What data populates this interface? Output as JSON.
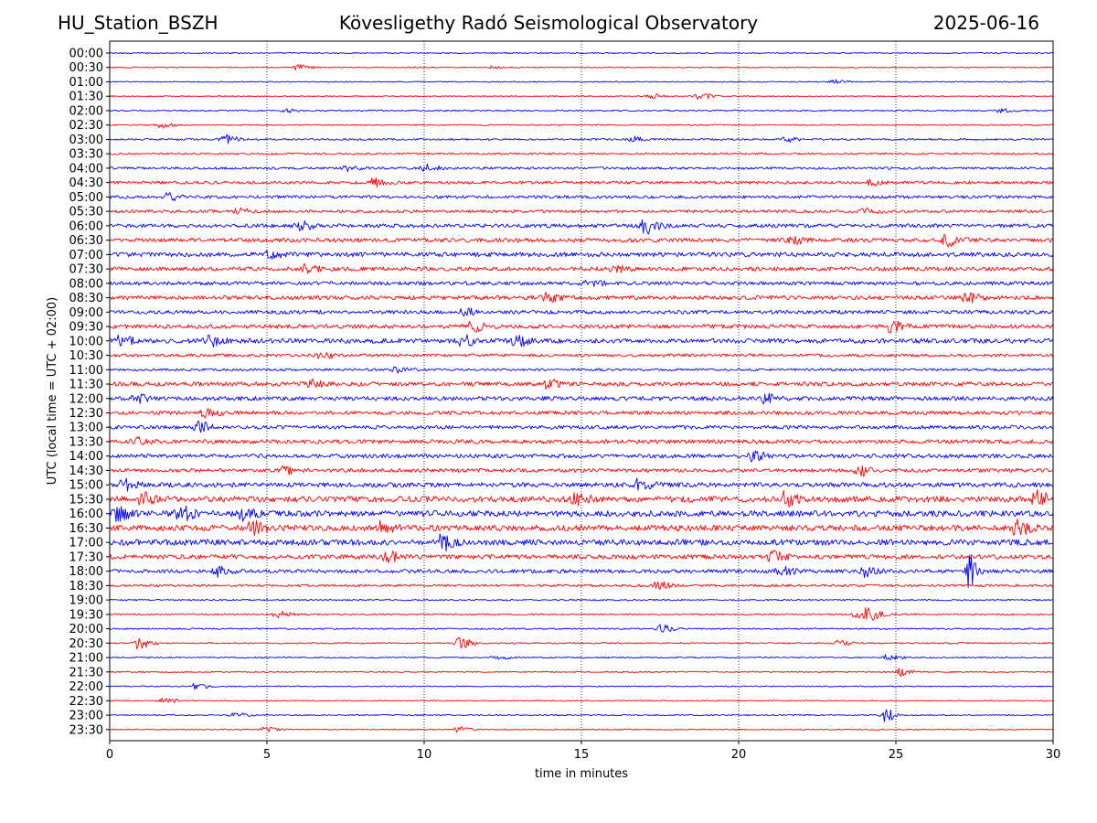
{
  "header": {
    "station": "HU_Station_BSZH",
    "title": "Kövesligethy Radó Seismological Observatory",
    "date": "2025-06-16"
  },
  "chart_data": {
    "type": "line",
    "subtype": "helicorder",
    "xlabel": "time in minutes",
    "ylabel": "UTC (local time = UTC + 02:00)",
    "xlim": [
      0,
      30
    ],
    "xticks": [
      0,
      5,
      10,
      15,
      20,
      25,
      30
    ],
    "grid": "vertical dotted at x ticks",
    "colors": [
      "#0000ff",
      "#ff0000"
    ],
    "rows": [
      "00:00",
      "00:30",
      "01:00",
      "01:30",
      "02:00",
      "02:30",
      "03:00",
      "03:30",
      "04:00",
      "04:30",
      "05:00",
      "05:30",
      "06:00",
      "06:30",
      "07:00",
      "07:30",
      "08:00",
      "08:30",
      "09:00",
      "09:30",
      "10:00",
      "10:30",
      "11:00",
      "11:30",
      "12:00",
      "12:30",
      "13:00",
      "13:30",
      "14:00",
      "14:30",
      "15:00",
      "15:30",
      "16:00",
      "16:30",
      "17:00",
      "17:30",
      "18:00",
      "18:30",
      "19:00",
      "19:30",
      "20:00",
      "20:30",
      "21:00",
      "21:30",
      "22:00",
      "22:30",
      "23:00",
      "23:30"
    ],
    "noise_level": [
      0.6,
      0.6,
      0.6,
      0.6,
      0.8,
      0.7,
      1.0,
      1.0,
      1.3,
      1.6,
      1.6,
      1.6,
      2.0,
      2.2,
      2.4,
      2.2,
      2.0,
      2.2,
      2.0,
      2.2,
      2.5,
      1.6,
      1.3,
      2.2,
      2.2,
      2.0,
      2.0,
      2.2,
      2.2,
      2.0,
      2.5,
      3.2,
      3.2,
      3.2,
      3.2,
      2.4,
      2.0,
      1.3,
      0.8,
      0.8,
      0.8,
      0.8,
      0.7,
      0.7,
      0.6,
      0.6,
      0.7,
      0.6
    ],
    "bursts": [
      {
        "row": "00:30",
        "minute": 5.9,
        "amplitude": 3
      },
      {
        "row": "00:30",
        "minute": 12.2,
        "amplitude": 2
      },
      {
        "row": "01:00",
        "minute": 23.0,
        "amplitude": 2
      },
      {
        "row": "01:30",
        "minute": 17.2,
        "amplitude": 3
      },
      {
        "row": "01:30",
        "minute": 18.7,
        "amplitude": 4
      },
      {
        "row": "02:00",
        "minute": 5.6,
        "amplitude": 2
      },
      {
        "row": "02:00",
        "minute": 28.3,
        "amplitude": 2
      },
      {
        "row": "02:30",
        "minute": 1.6,
        "amplitude": 3
      },
      {
        "row": "03:00",
        "minute": 3.6,
        "amplitude": 5
      },
      {
        "row": "03:00",
        "minute": 16.6,
        "amplitude": 3
      },
      {
        "row": "03:00",
        "minute": 21.5,
        "amplitude": 3
      },
      {
        "row": "04:00",
        "minute": 7.5,
        "amplitude": 3
      },
      {
        "row": "04:00",
        "minute": 10.0,
        "amplitude": 4
      },
      {
        "row": "04:30",
        "minute": 8.4,
        "amplitude": 5
      },
      {
        "row": "04:30",
        "minute": 24.1,
        "amplitude": 3
      },
      {
        "row": "05:00",
        "minute": 1.8,
        "amplitude": 4
      },
      {
        "row": "05:30",
        "minute": 4.0,
        "amplitude": 3
      },
      {
        "row": "05:30",
        "minute": 24.0,
        "amplitude": 3
      },
      {
        "row": "06:00",
        "minute": 6.0,
        "amplitude": 5
      },
      {
        "row": "06:00",
        "minute": 17.0,
        "amplitude": 8
      },
      {
        "row": "06:30",
        "minute": 21.6,
        "amplitude": 5
      },
      {
        "row": "06:30",
        "minute": 26.6,
        "amplitude": 6
      },
      {
        "row": "07:00",
        "minute": 5.0,
        "amplitude": 4
      },
      {
        "row": "07:30",
        "minute": 6.2,
        "amplitude": 4
      },
      {
        "row": "07:30",
        "minute": 16.0,
        "amplitude": 4
      },
      {
        "row": "08:00",
        "minute": 15.2,
        "amplitude": 4
      },
      {
        "row": "08:30",
        "minute": 13.8,
        "amplitude": 5
      },
      {
        "row": "08:30",
        "minute": 27.2,
        "amplitude": 5
      },
      {
        "row": "09:00",
        "minute": 11.2,
        "amplitude": 4
      },
      {
        "row": "09:30",
        "minute": 11.5,
        "amplitude": 5
      },
      {
        "row": "09:30",
        "minute": 24.8,
        "amplitude": 6
      },
      {
        "row": "10:00",
        "minute": 0.3,
        "amplitude": 5
      },
      {
        "row": "10:00",
        "minute": 3.1,
        "amplitude": 6
      },
      {
        "row": "10:00",
        "minute": 11.1,
        "amplitude": 7
      },
      {
        "row": "10:00",
        "minute": 12.9,
        "amplitude": 5
      },
      {
        "row": "10:30",
        "minute": 6.7,
        "amplitude": 4
      },
      {
        "row": "11:00",
        "minute": 9.1,
        "amplitude": 3
      },
      {
        "row": "11:30",
        "minute": 6.3,
        "amplitude": 4
      },
      {
        "row": "11:30",
        "minute": 13.9,
        "amplitude": 4
      },
      {
        "row": "12:00",
        "minute": 0.8,
        "amplitude": 4
      },
      {
        "row": "12:00",
        "minute": 20.8,
        "amplitude": 4
      },
      {
        "row": "12:30",
        "minute": 3.0,
        "amplitude": 4
      },
      {
        "row": "13:00",
        "minute": 2.8,
        "amplitude": 5
      },
      {
        "row": "13:30",
        "minute": 0.8,
        "amplitude": 4
      },
      {
        "row": "14:00",
        "minute": 20.4,
        "amplitude": 5
      },
      {
        "row": "14:30",
        "minute": 5.5,
        "amplitude": 4
      },
      {
        "row": "14:30",
        "minute": 23.8,
        "amplitude": 5
      },
      {
        "row": "15:00",
        "minute": 0.4,
        "amplitude": 6
      },
      {
        "row": "15:00",
        "minute": 16.8,
        "amplitude": 6
      },
      {
        "row": "15:30",
        "minute": 1.0,
        "amplitude": 7
      },
      {
        "row": "15:30",
        "minute": 14.8,
        "amplitude": 6
      },
      {
        "row": "15:30",
        "minute": 21.4,
        "amplitude": 7
      },
      {
        "row": "15:30",
        "minute": 29.4,
        "amplitude": 8
      },
      {
        "row": "16:00",
        "minute": 0.2,
        "amplitude": 6
      },
      {
        "row": "16:00",
        "minute": 2.2,
        "amplitude": 7
      },
      {
        "row": "16:00",
        "minute": 4.2,
        "amplitude": 6
      },
      {
        "row": "16:30",
        "minute": 4.5,
        "amplitude": 6
      },
      {
        "row": "16:30",
        "minute": 8.6,
        "amplitude": 6
      },
      {
        "row": "16:30",
        "minute": 28.8,
        "amplitude": 7
      },
      {
        "row": "17:00",
        "minute": 10.5,
        "amplitude": 8
      },
      {
        "row": "17:30",
        "minute": 8.8,
        "amplitude": 5
      },
      {
        "row": "17:30",
        "minute": 21.0,
        "amplitude": 5
      },
      {
        "row": "18:00",
        "minute": 3.4,
        "amplitude": 5
      },
      {
        "row": "18:00",
        "minute": 21.3,
        "amplitude": 5
      },
      {
        "row": "18:00",
        "minute": 24.0,
        "amplitude": 5
      },
      {
        "row": "18:00",
        "minute": 27.3,
        "amplitude": 17
      },
      {
        "row": "18:30",
        "minute": 17.4,
        "amplitude": 4
      },
      {
        "row": "19:30",
        "minute": 5.3,
        "amplitude": 4
      },
      {
        "row": "19:30",
        "minute": 23.7,
        "amplitude": 6
      },
      {
        "row": "19:30",
        "minute": 24.1,
        "amplitude": 6
      },
      {
        "row": "20:00",
        "minute": 17.5,
        "amplitude": 4
      },
      {
        "row": "20:30",
        "minute": 0.9,
        "amplitude": 6
      },
      {
        "row": "20:30",
        "minute": 11.1,
        "amplitude": 6
      },
      {
        "row": "20:30",
        "minute": 23.1,
        "amplitude": 3
      },
      {
        "row": "21:00",
        "minute": 12.2,
        "amplitude": 3
      },
      {
        "row": "21:00",
        "minute": 24.7,
        "amplitude": 3
      },
      {
        "row": "21:30",
        "minute": 25.1,
        "amplitude": 4
      },
      {
        "row": "22:00",
        "minute": 2.7,
        "amplitude": 3
      },
      {
        "row": "22:30",
        "minute": 1.7,
        "amplitude": 3
      },
      {
        "row": "23:00",
        "minute": 3.9,
        "amplitude": 3
      },
      {
        "row": "23:00",
        "minute": 24.6,
        "amplitude": 11
      },
      {
        "row": "23:30",
        "minute": 4.9,
        "amplitude": 3
      },
      {
        "row": "23:30",
        "minute": 11.0,
        "amplitude": 3
      }
    ]
  }
}
